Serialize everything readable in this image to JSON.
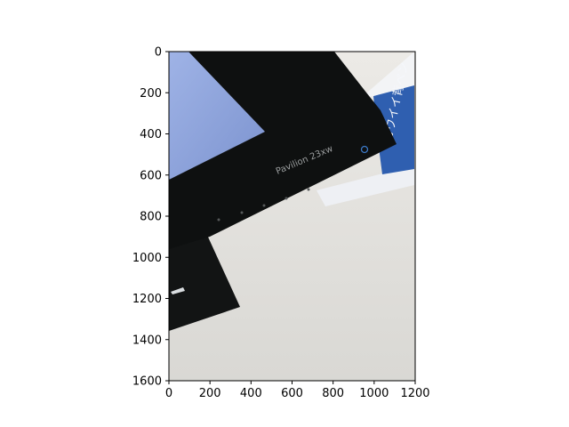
{
  "chart_data": {
    "type": "image",
    "xlim": [
      0,
      1200
    ],
    "ylim": [
      1600,
      0
    ],
    "xticks": [
      0,
      200,
      400,
      600,
      800,
      1000,
      1200
    ],
    "yticks": [
      0,
      200,
      400,
      600,
      800,
      1000,
      1200,
      1400,
      1600
    ],
    "xtick_labels": [
      "0",
      "200",
      "400",
      "600",
      "800",
      "1000",
      "1200"
    ],
    "ytick_labels": [
      "0",
      "200",
      "400",
      "600",
      "800",
      "1000",
      "1200",
      "1400",
      "1600"
    ],
    "grid": false,
    "photo": {
      "description_colors": {
        "table_surface": "#e4e3df",
        "monitor_bezel": "#0e1010",
        "screen_glow": "#8fa6dc",
        "box_blue": "#2f5fb0",
        "box_white": "#eef0f4"
      },
      "printed_text": {
        "model": "Pavilion 23xw",
        "box_text": "カワイイ背ペン"
      }
    }
  }
}
